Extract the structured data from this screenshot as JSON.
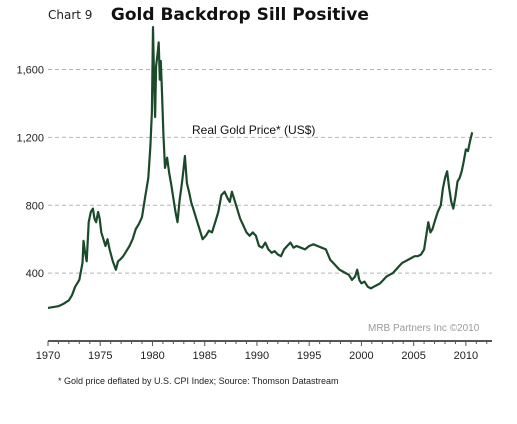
{
  "header": {
    "chart_number": "Chart 9",
    "title": "Gold Backdrop Sill Positive"
  },
  "footnote": "* Gold price deflated by U.S. CPI Index; Source: Thomson Datastream",
  "colors": {
    "line": "#1a4a2a",
    "grid": "#b5b5b5",
    "axis": "#555555",
    "credit": "#9a9a9a"
  },
  "chart_data": {
    "type": "line",
    "title": "Gold Backdrop Sill Positive",
    "series_label": "Real Gold Price* (US$)",
    "credit": "MRB Partners Inc ©2010",
    "xlabel": "",
    "ylabel": "",
    "xlim": [
      1970,
      2012.5
    ],
    "ylim": [
      0,
      1880
    ],
    "grid": "horizontal dashed",
    "x_ticks": [
      1970,
      1975,
      1980,
      1985,
      1990,
      1995,
      2000,
      2005,
      2010
    ],
    "y_ticks": [
      400,
      800,
      1200,
      1600
    ],
    "y_tick_labels": [
      "400",
      "800",
      "1,200",
      "1,600"
    ],
    "series": [
      {
        "x": [
          1970.0,
          1970.5,
          1971.0,
          1971.5,
          1972.0,
          1972.3,
          1972.6,
          1973.0,
          1973.3,
          1973.4,
          1973.55,
          1973.7,
          1973.9,
          1974.1,
          1974.3,
          1974.45,
          1974.6,
          1974.8,
          1974.95,
          1975.1,
          1975.3,
          1975.5,
          1975.7,
          1975.9,
          1976.2,
          1976.5,
          1976.7,
          1976.9,
          1977.2,
          1977.5,
          1977.8,
          1978.1,
          1978.4,
          1978.7,
          1979.0,
          1979.3,
          1979.6,
          1979.8,
          1979.95,
          1980.05,
          1980.15,
          1980.25,
          1980.35,
          1980.5,
          1980.6,
          1980.7,
          1980.8,
          1980.9,
          1981.05,
          1981.2,
          1981.4,
          1981.6,
          1981.8,
          1982.0,
          1982.2,
          1982.4,
          1982.6,
          1982.8,
          1982.95,
          1983.1,
          1983.3,
          1983.5,
          1983.7,
          1983.9,
          1984.2,
          1984.5,
          1984.8,
          1985.1,
          1985.4,
          1985.7,
          1986.0,
          1986.3,
          1986.6,
          1986.9,
          1987.2,
          1987.4,
          1987.6,
          1987.8,
          1988.1,
          1988.4,
          1988.7,
          1989.0,
          1989.3,
          1989.6,
          1989.9,
          1990.2,
          1990.5,
          1990.8,
          1991.1,
          1991.4,
          1991.7,
          1992.0,
          1992.3,
          1992.6,
          1992.9,
          1993.2,
          1993.5,
          1993.8,
          1994.2,
          1994.6,
          1995.0,
          1995.4,
          1995.8,
          1996.2,
          1996.6,
          1997.0,
          1997.3,
          1997.6,
          1997.9,
          1998.2,
          1998.5,
          1998.8,
          1999.1,
          1999.4,
          1999.6,
          1999.8,
          2000.0,
          2000.3,
          2000.6,
          2000.9,
          2001.2,
          2001.5,
          2001.8,
          2002.1,
          2002.4,
          2002.7,
          2003.0,
          2003.3,
          2003.6,
          2003.9,
          2004.2,
          2004.5,
          2004.8,
          2005.1,
          2005.4,
          2005.7,
          2006.0,
          2006.2,
          2006.4,
          2006.6,
          2006.8,
          2007.0,
          2007.3,
          2007.6,
          2007.8,
          2008.0,
          2008.2,
          2008.4,
          2008.6,
          2008.8,
          2009.0,
          2009.2,
          2009.4,
          2009.6,
          2009.8,
          2010.0,
          2010.2,
          2010.4,
          2010.6
        ],
        "values": [
          195,
          200,
          205,
          220,
          240,
          270,
          320,
          360,
          460,
          590,
          520,
          470,
          700,
          760,
          780,
          720,
          700,
          760,
          720,
          640,
          600,
          560,
          600,
          540,
          470,
          420,
          470,
          480,
          500,
          530,
          560,
          600,
          660,
          690,
          730,
          850,
          960,
          1150,
          1350,
          1850,
          1560,
          1320,
          1620,
          1700,
          1760,
          1540,
          1650,
          1480,
          1220,
          1020,
          1080,
          990,
          920,
          840,
          760,
          700,
          830,
          920,
          1000,
          1090,
          930,
          880,
          820,
          780,
          720,
          660,
          600,
          620,
          650,
          640,
          700,
          760,
          860,
          880,
          840,
          820,
          880,
          840,
          780,
          720,
          680,
          640,
          620,
          640,
          620,
          560,
          550,
          580,
          540,
          520,
          530,
          510,
          500,
          540,
          560,
          580,
          550,
          560,
          550,
          540,
          560,
          570,
          560,
          550,
          540,
          480,
          460,
          440,
          420,
          410,
          400,
          390,
          360,
          380,
          420,
          360,
          340,
          350,
          320,
          310,
          320,
          330,
          340,
          360,
          380,
          390,
          400,
          420,
          440,
          460,
          470,
          480,
          490,
          500,
          500,
          510,
          540,
          620,
          700,
          640,
          660,
          700,
          760,
          800,
          900,
          960,
          1000,
          900,
          820,
          780,
          850,
          940,
          960,
          1000,
          1060,
          1130,
          1120,
          1180,
          1230
        ]
      }
    ]
  }
}
